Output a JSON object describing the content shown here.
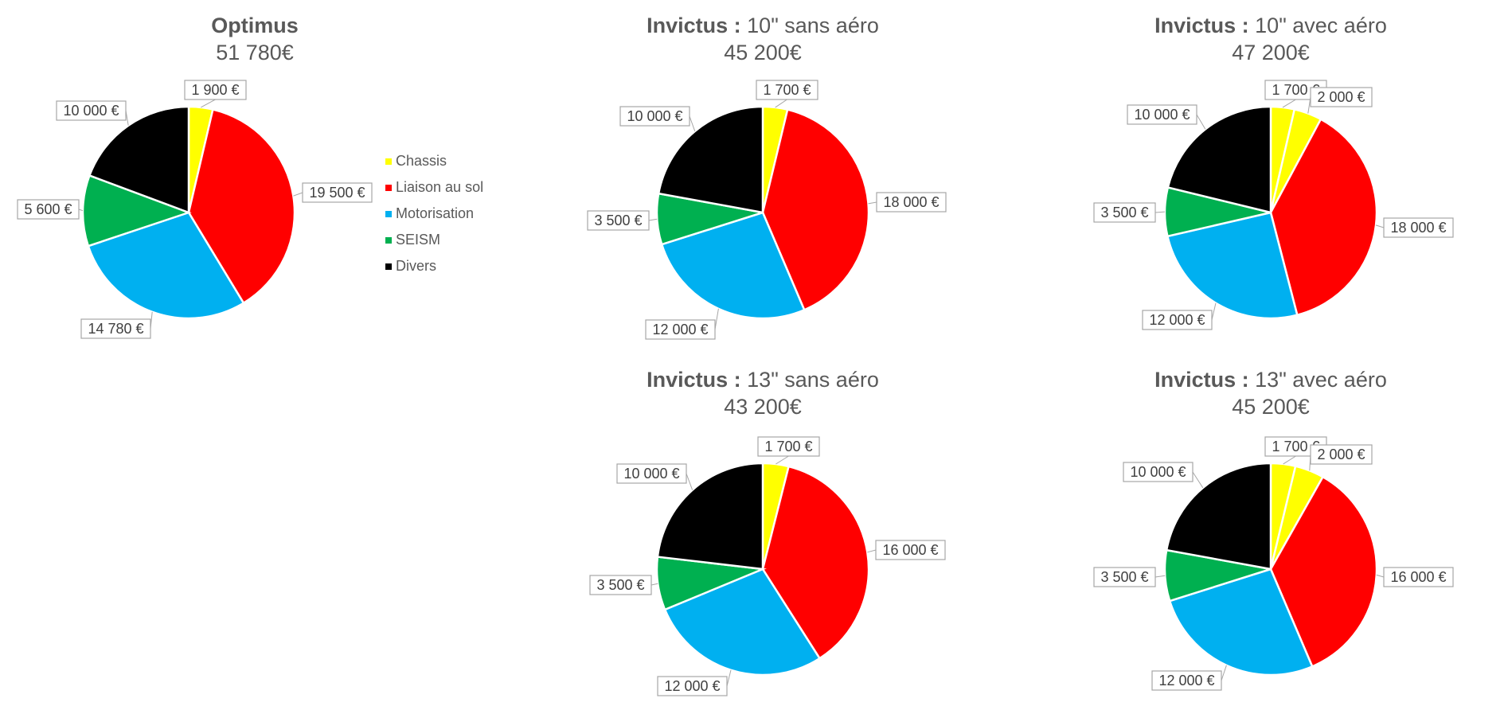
{
  "colors": {
    "Chassis": "#FFFF00",
    "Liaison au sol": "#FF0000",
    "Motorisation": "#00B0F0",
    "SEISM": "#00B050",
    "Divers": "#000000"
  },
  "legend": [
    "Chassis",
    "Liaison au sol",
    "Motorisation",
    "SEISM",
    "Divers"
  ],
  "chart_data": [
    {
      "type": "pie",
      "title_bold": "Optimus",
      "title_rest": "",
      "subtitle": "51 780€",
      "slices": [
        {
          "category": "Chassis",
          "value": 1900,
          "label": "1 900 €"
        },
        {
          "category": "Liaison au sol",
          "value": 19500,
          "label": "19 500 €"
        },
        {
          "category": "Motorisation",
          "value": 14780,
          "label": "14 780 €"
        },
        {
          "category": "SEISM",
          "value": 5600,
          "label": "5 600 €"
        },
        {
          "category": "Divers",
          "value": 10000,
          "label": "10 000 €"
        }
      ]
    },
    {
      "type": "pie",
      "title_bold": "Invictus :",
      "title_rest": " 10\" sans aéro",
      "subtitle": "45 200€",
      "slices": [
        {
          "category": "Chassis",
          "value": 1700,
          "label": "1 700 €"
        },
        {
          "category": "Liaison au sol",
          "value": 18000,
          "label": "18 000 €"
        },
        {
          "category": "Motorisation",
          "value": 12000,
          "label": "12 000 €"
        },
        {
          "category": "SEISM",
          "value": 3500,
          "label": "3 500 €"
        },
        {
          "category": "Divers",
          "value": 10000,
          "label": "10 000 €"
        }
      ]
    },
    {
      "type": "pie",
      "title_bold": "Invictus :",
      "title_rest": " 10\" avec aéro",
      "subtitle": "47 200€",
      "slices": [
        {
          "category": "Chassis",
          "value": 1700,
          "label": "1 700 €"
        },
        {
          "category": "Chassis",
          "value": 2000,
          "label": "2 000 €"
        },
        {
          "category": "Liaison au sol",
          "value": 18000,
          "label": "18 000 €"
        },
        {
          "category": "Motorisation",
          "value": 12000,
          "label": "12 000 €"
        },
        {
          "category": "SEISM",
          "value": 3500,
          "label": "3 500 €"
        },
        {
          "category": "Divers",
          "value": 10000,
          "label": "10 000 €"
        }
      ]
    },
    {
      "type": "pie",
      "title_bold": "Invictus :",
      "title_rest": " 13\" sans aéro",
      "subtitle": "43 200€",
      "slices": [
        {
          "category": "Chassis",
          "value": 1700,
          "label": "1 700 €"
        },
        {
          "category": "Liaison au sol",
          "value": 16000,
          "label": "16 000 €"
        },
        {
          "category": "Motorisation",
          "value": 12000,
          "label": "12 000 €"
        },
        {
          "category": "SEISM",
          "value": 3500,
          "label": "3 500 €"
        },
        {
          "category": "Divers",
          "value": 10000,
          "label": "10 000 €"
        }
      ]
    },
    {
      "type": "pie",
      "title_bold": "Invictus :",
      "title_rest": " 13\" avec aéro",
      "subtitle": "45 200€",
      "slices": [
        {
          "category": "Chassis",
          "value": 1700,
          "label": "1 700 €"
        },
        {
          "category": "Chassis",
          "value": 2000,
          "label": "2 000 €"
        },
        {
          "category": "Liaison au sol",
          "value": 16000,
          "label": "16 000 €"
        },
        {
          "category": "Motorisation",
          "value": 12000,
          "label": "12 000 €"
        },
        {
          "category": "SEISM",
          "value": 3500,
          "label": "3 500 €"
        },
        {
          "category": "Divers",
          "value": 10000,
          "label": "10 000 €"
        }
      ]
    }
  ]
}
